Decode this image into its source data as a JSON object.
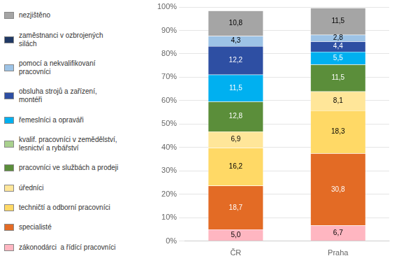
{
  "chart_data": {
    "type": "bar",
    "stacked": true,
    "categories": [
      "ČR",
      "Praha"
    ],
    "series": [
      {
        "name": "zákonodárci  a řídící pracovníci",
        "color": "#FFB6C1",
        "values": [
          5.0,
          6.7
        ],
        "value_labels": [
          "5,0",
          "6,7"
        ]
      },
      {
        "name": "specialisté",
        "color": "#E36B25",
        "values": [
          18.7,
          30.8
        ],
        "value_labels": [
          "18,7",
          "30,8"
        ]
      },
      {
        "name": "techničtí a odborní pracovníci",
        "color": "#FFD966",
        "values": [
          16.2,
          18.3
        ],
        "value_labels": [
          "16,2",
          "18,3"
        ]
      },
      {
        "name": "úředníci",
        "color": "#FFE699",
        "values": [
          6.9,
          8.1
        ],
        "value_labels": [
          "6,9",
          "8,1"
        ]
      },
      {
        "name": "pracovníci ve službách a prodeji",
        "color": "#5B8E3A",
        "values": [
          12.8,
          11.5
        ],
        "value_labels": [
          "12,8",
          "11,5"
        ]
      },
      {
        "name": "kvalif. pracovníci v zemědělství,\nlesnictví a rybářství",
        "color": "#A9D18E",
        "values": [
          0.0,
          0.0
        ],
        "value_labels": [
          null,
          null
        ]
      },
      {
        "name": "řemeslníci a opraváři",
        "color": "#00B0F0",
        "values": [
          11.5,
          5.5
        ],
        "value_labels": [
          "11,5",
          "5,5"
        ]
      },
      {
        "name": "obsluha strojů a zařízení,\nmontéři",
        "color": "#2E4FA3",
        "values": [
          12.2,
          4.4
        ],
        "value_labels": [
          "12,2",
          "4,4"
        ]
      },
      {
        "name": "pomocí a nekvalifikovaní\npracovníci",
        "color": "#9DC3E6",
        "values": [
          4.3,
          2.8
        ],
        "value_labels": [
          "4,3",
          "2,8"
        ]
      },
      {
        "name": "zaměstnanci v ozbrojených\nsilách",
        "color": "#1F3864",
        "values": [
          0.0,
          0.0
        ],
        "value_labels": [
          null,
          null
        ]
      },
      {
        "name": "nezjištěno",
        "color": "#A5A5A5",
        "values": [
          10.8,
          11.5
        ],
        "value_labels": [
          "10,8",
          "11,5"
        ]
      }
    ],
    "ylim": [
      0,
      100
    ],
    "yticks": [
      {
        "value": 0,
        "label": "0%"
      },
      {
        "value": 10,
        "label": "10%"
      },
      {
        "value": 20,
        "label": "20%"
      },
      {
        "value": 30,
        "label": "30%"
      },
      {
        "value": 40,
        "label": "40%"
      },
      {
        "value": 50,
        "label": "50%"
      },
      {
        "value": 60,
        "label": "60%"
      },
      {
        "value": 70,
        "label": "70%"
      },
      {
        "value": 80,
        "label": "80%"
      },
      {
        "value": 90,
        "label": "90%"
      },
      {
        "value": 100,
        "label": "100%"
      }
    ],
    "grid": true,
    "data_labels": true,
    "legend": "left"
  }
}
